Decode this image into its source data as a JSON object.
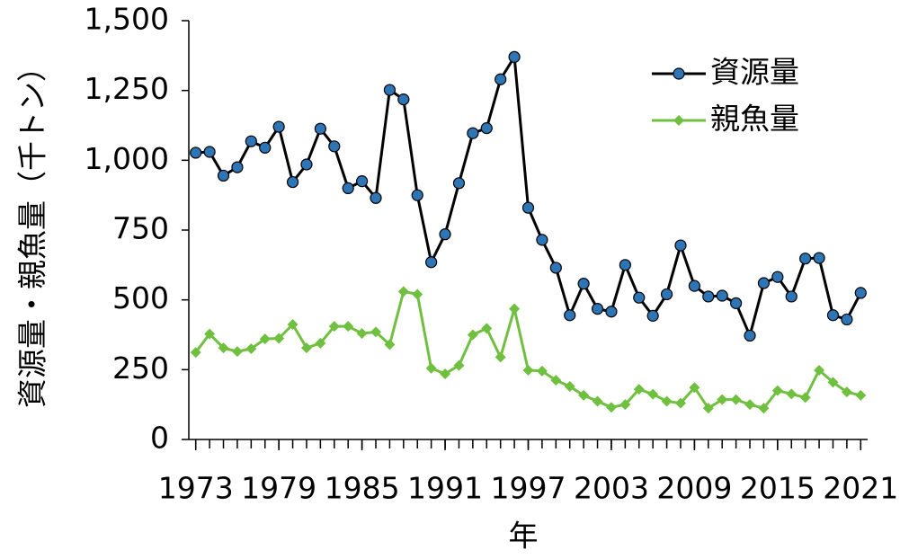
{
  "chart_data": {
    "type": "line",
    "x_label": "年",
    "y_label": "資源量・親魚量（千トン）",
    "x": [
      1973,
      1974,
      1975,
      1976,
      1977,
      1978,
      1979,
      1980,
      1981,
      1982,
      1983,
      1984,
      1985,
      1986,
      1987,
      1988,
      1989,
      1990,
      1991,
      1992,
      1993,
      1994,
      1995,
      1996,
      1997,
      1998,
      1999,
      2000,
      2001,
      2002,
      2003,
      2004,
      2005,
      2006,
      2007,
      2008,
      2009,
      2010,
      2011,
      2012,
      2013,
      2014,
      2015,
      2016,
      2017,
      2018,
      2019,
      2020,
      2021
    ],
    "series": [
      {
        "name": "資源量",
        "color": "#000000",
        "marker_color": "#2e75b6",
        "marker": "circle",
        "values": [
          1027,
          1030,
          945,
          975,
          1068,
          1045,
          1120,
          922,
          985,
          1113,
          1050,
          900,
          925,
          865,
          1252,
          1218,
          875,
          635,
          735,
          918,
          1097,
          1115,
          1290,
          1370,
          830,
          715,
          615,
          445,
          558,
          468,
          458,
          625,
          508,
          443,
          520,
          695,
          550,
          512,
          515,
          488,
          372,
          560,
          582,
          512,
          648,
          650,
          445,
          430,
          525
        ]
      },
      {
        "name": "親魚量",
        "color": "#70c040",
        "marker_color": "#70c040",
        "marker": "diamond",
        "values": [
          312,
          378,
          328,
          315,
          325,
          360,
          362,
          412,
          328,
          345,
          405,
          405,
          380,
          385,
          340,
          530,
          520,
          255,
          235,
          265,
          375,
          398,
          295,
          468,
          248,
          245,
          212,
          190,
          158,
          137,
          115,
          125,
          180,
          162,
          137,
          130,
          186,
          112,
          143,
          143,
          125,
          112,
          175,
          163,
          150,
          248,
          205,
          170,
          158
        ]
      }
    ],
    "xlim": [
      1972.5,
      2021.5
    ],
    "xticks": [
      1973,
      1979,
      1985,
      1991,
      1997,
      2003,
      2009,
      2015,
      2021
    ],
    "ylim": [
      0,
      1500
    ],
    "yticks": [
      0,
      250,
      500,
      750,
      {
        "value": 1000,
        "label": "1,000"
      },
      {
        "value": 1250,
        "label": "1,250"
      },
      {
        "value": 1500,
        "label": "1,500"
      }
    ]
  }
}
